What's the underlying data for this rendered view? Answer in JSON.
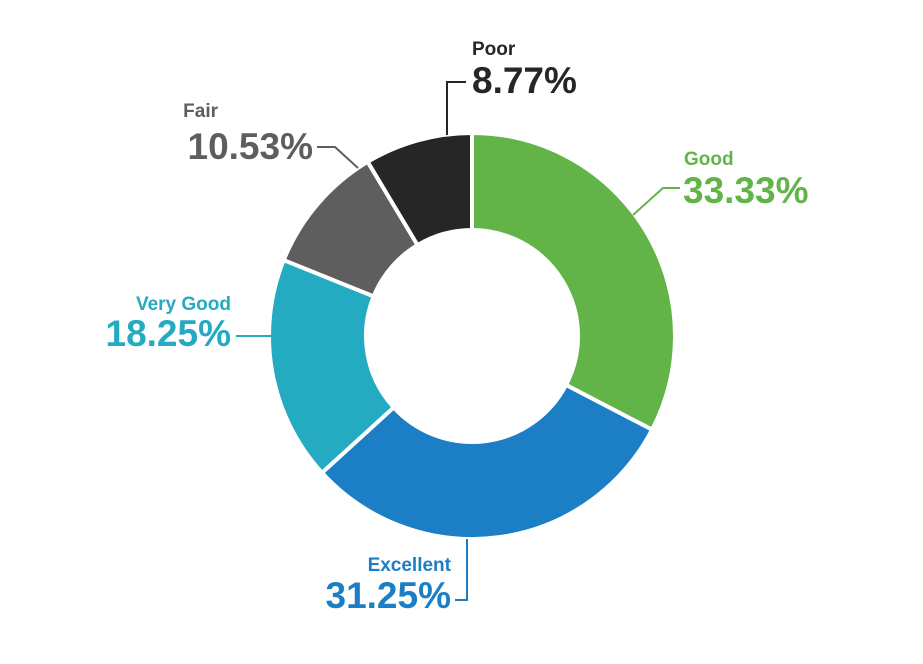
{
  "chart_data": {
    "type": "pie",
    "donut": true,
    "title": "",
    "legend": "none",
    "slices": [
      {
        "label": "Good",
        "value": 33.33,
        "display": "33.33%",
        "color": "#62b448"
      },
      {
        "label": "Excellent",
        "value": 31.25,
        "display": "31.25%",
        "color": "#1c7fc6"
      },
      {
        "label": "Very Good",
        "value": 18.25,
        "display": "18.25%",
        "color": "#24abc1"
      },
      {
        "label": "Fair",
        "value": 10.53,
        "display": "10.53%",
        "color": "#5e5e5e"
      },
      {
        "label": "Poor",
        "value": 8.77,
        "display": "8.77%",
        "color": "#262626"
      }
    ]
  }
}
